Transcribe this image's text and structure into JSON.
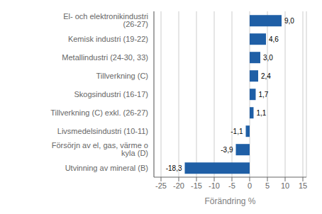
{
  "chart_data": {
    "type": "bar",
    "orientation": "horizontal",
    "categories": [
      "Utvinning av mineral (B)",
      "Försörjn av el, gas, värme o kyla (D)",
      "Livsmedelsindustri (10-11)",
      "Tillverkning (C) exkl. (26-27)",
      "Skogsindustri (16-17)",
      "Tillverkning (C)",
      "Metallindustri (24-30, 33)",
      "Kemisk industri (19-22)",
      "El- och elektronikindustri (26-27)"
    ],
    "values": [
      -18.3,
      -3.9,
      -1.1,
      1.1,
      1.7,
      2.4,
      3.0,
      4.6,
      9.0
    ],
    "value_labels": [
      "-18,3",
      "-3,9",
      "-1,1",
      "1,1",
      "1,7",
      "2,4",
      "3,0",
      "4,6",
      "9,0"
    ],
    "data_labels": true,
    "color": "#1f5fa6",
    "xlabel": "Förändring %",
    "xlim": [
      -27,
      16
    ],
    "xticks": [
      -25,
      -20,
      -15,
      -10,
      -5,
      0,
      5,
      10,
      15
    ],
    "grid": true
  }
}
